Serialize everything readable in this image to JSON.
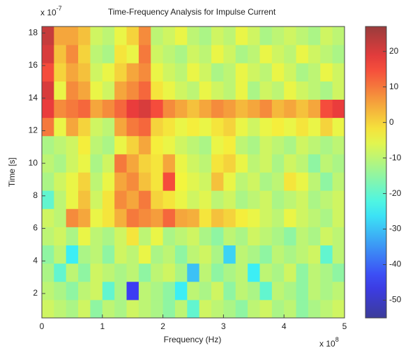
{
  "chart_data": {
    "type": "heatmap",
    "title": "Time-Frequency Analysis for Impulse Current",
    "x_label": "Frequency (Hz)",
    "y_label": "Time [s]",
    "x_exponent": {
      "base": "x 10",
      "power": "8"
    },
    "y_exponent": {
      "base": "x 10",
      "power": "-7"
    },
    "xlim": [
      0,
      5
    ],
    "ylim": [
      0.5,
      18.4
    ],
    "xticks": [
      0,
      1,
      2,
      3,
      4,
      5
    ],
    "yticks": [
      2,
      4,
      6,
      8,
      10,
      12,
      14,
      16,
      18
    ],
    "colormap": "jet",
    "clim": [
      -55,
      27
    ],
    "cticks": [
      -50,
      -40,
      -30,
      -20,
      -10,
      0,
      10,
      20
    ],
    "z": [
      [
        -8,
        -10,
        -12,
        -8,
        -15,
        -10,
        -12,
        -8,
        -10,
        -12,
        -15,
        -10,
        -20,
        -8,
        -10,
        -12,
        -15,
        -10,
        -8,
        -12,
        -10,
        -15,
        -12,
        -10,
        -8
      ],
      [
        -10,
        -12,
        -15,
        -10,
        -8,
        -20,
        -12,
        -45,
        -10,
        -12,
        -15,
        -25,
        -10,
        -12,
        -8,
        -15,
        -10,
        -12,
        -20,
        -10,
        -12,
        -15,
        -10,
        -12,
        -10
      ],
      [
        -12,
        -20,
        -10,
        -15,
        -8,
        -10,
        -12,
        -10,
        -15,
        -10,
        -8,
        -12,
        -30,
        -10,
        -15,
        -12,
        -10,
        -25,
        -10,
        -12,
        -8,
        -15,
        -10,
        -12,
        -15
      ],
      [
        -15,
        -10,
        -25,
        -12,
        -10,
        -15,
        -8,
        -10,
        -5,
        -12,
        -10,
        -15,
        -10,
        -8,
        -12,
        -28,
        -10,
        -12,
        -15,
        -10,
        -12,
        -10,
        -8,
        -20,
        -10
      ],
      [
        -10,
        -8,
        -12,
        -5,
        -10,
        -12,
        -8,
        -2,
        -10,
        -5,
        -12,
        -10,
        -8,
        -12,
        -15,
        -10,
        -12,
        -8,
        -10,
        -12,
        -15,
        -10,
        -12,
        -8,
        -10
      ],
      [
        -8,
        -10,
        8,
        5,
        -5,
        -2,
        4,
        10,
        8,
        6,
        12,
        5,
        4,
        -2,
        2,
        0,
        -3,
        -5,
        -8,
        -10,
        -5,
        -8,
        -10,
        -12,
        -8
      ],
      [
        -20,
        -10,
        -5,
        2,
        -8,
        -2,
        8,
        5,
        10,
        0,
        -2,
        -5,
        -8,
        -6,
        -10,
        -8,
        -12,
        -10,
        -8,
        -12,
        -10,
        -8,
        -12,
        -10,
        -8
      ],
      [
        -12,
        -8,
        -5,
        0,
        -10,
        -5,
        5,
        8,
        2,
        -2,
        15,
        -4,
        -6,
        -8,
        2,
        -5,
        -10,
        -8,
        -12,
        -10,
        -2,
        -5,
        -10,
        -15,
        -10
      ],
      [
        -10,
        -12,
        -8,
        -5,
        -12,
        -8,
        10,
        5,
        0,
        -2,
        5,
        -5,
        -8,
        -10,
        -2,
        0,
        -5,
        -10,
        -8,
        -12,
        -8,
        -10,
        -15,
        -10,
        -12
      ],
      [
        -12,
        -10,
        -8,
        -3,
        -10,
        -12,
        -5,
        0,
        5,
        -3,
        -5,
        -8,
        -10,
        -12,
        -5,
        -3,
        -10,
        -12,
        -8,
        -10,
        -12,
        -8,
        -10,
        -12,
        -10
      ],
      [
        10,
        -5,
        5,
        0,
        -8,
        -10,
        5,
        10,
        12,
        0,
        -2,
        -5,
        -3,
        -5,
        -2,
        0,
        -5,
        -8,
        -5,
        -3,
        -5,
        -2,
        -5,
        0,
        -5
      ],
      [
        18,
        8,
        10,
        12,
        5,
        8,
        12,
        18,
        20,
        15,
        8,
        5,
        2,
        5,
        8,
        6,
        3,
        5,
        8,
        3,
        5,
        2,
        5,
        15,
        18
      ],
      [
        20,
        -5,
        8,
        5,
        -5,
        -8,
        5,
        8,
        12,
        -2,
        -5,
        -8,
        -10,
        -5,
        -8,
        -10,
        -5,
        -12,
        -8,
        -10,
        -5,
        -8,
        -10,
        -12,
        -8
      ],
      [
        15,
        0,
        5,
        2,
        -8,
        -5,
        0,
        5,
        8,
        -5,
        -8,
        -10,
        -5,
        -8,
        -12,
        -10,
        -5,
        -8,
        -10,
        -5,
        -8,
        -12,
        -10,
        -5,
        -8
      ],
      [
        20,
        2,
        8,
        0,
        -10,
        -12,
        -2,
        -5,
        10,
        -8,
        -10,
        -12,
        -8,
        -10,
        -5,
        -8,
        -12,
        -10,
        -5,
        -8,
        -10,
        -5,
        -8,
        -10,
        -12
      ],
      [
        22,
        5,
        5,
        2,
        -8,
        -10,
        -5,
        0,
        8,
        -10,
        -8,
        -5,
        -10,
        -12,
        -8,
        -10,
        -5,
        -8,
        -12,
        -10,
        -8,
        -10,
        -12,
        -8,
        -10
      ]
    ]
  }
}
